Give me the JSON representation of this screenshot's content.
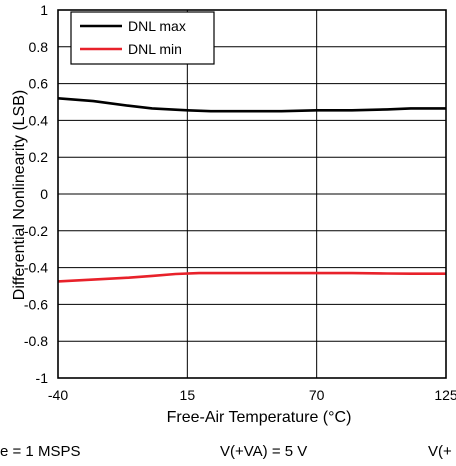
{
  "chart_data": {
    "type": "line",
    "title": "",
    "xlabel": "Free-Air Temperature (°C)",
    "ylabel": "Differential Nonlinearity (LSB)",
    "xlim": [
      -40,
      125
    ],
    "ylim": [
      -1,
      1
    ],
    "x_ticks": [
      -40,
      15,
      70,
      125
    ],
    "x_tick_labels": [
      "-40",
      "15",
      "70",
      "125"
    ],
    "y_ticks": [
      -1,
      -0.8,
      -0.6,
      -0.4,
      -0.2,
      0,
      0.2,
      0.4,
      0.6,
      0.8,
      1
    ],
    "y_tick_labels": [
      "-1",
      "-0.8",
      "-0.6",
      "-0.4",
      "-0.2",
      "0",
      "0.2",
      "0.4",
      "0.6",
      "0.8",
      "1"
    ],
    "grid": true,
    "legend_position": "top-left",
    "series": [
      {
        "name": "DNL max",
        "color": "#000000",
        "x": [
          -40,
          -25,
          -10,
          0,
          15,
          25,
          40,
          55,
          70,
          85,
          100,
          110,
          125
        ],
        "y": [
          0.52,
          0.505,
          0.48,
          0.465,
          0.455,
          0.45,
          0.45,
          0.45,
          0.455,
          0.455,
          0.46,
          0.465,
          0.465
        ]
      },
      {
        "name": "DNL min",
        "color": "#e8212a",
        "x": [
          -40,
          -25,
          -10,
          0,
          10,
          20,
          40,
          55,
          70,
          85,
          100,
          110,
          125
        ],
        "y": [
          -0.475,
          -0.465,
          -0.455,
          -0.445,
          -0.435,
          -0.43,
          -0.43,
          -0.43,
          -0.43,
          -0.43,
          -0.432,
          -0.433,
          -0.433
        ]
      }
    ]
  },
  "conditions": [
    "e = 1 MSPS",
    "V(+VA) = 5 V",
    "V(+"
  ]
}
